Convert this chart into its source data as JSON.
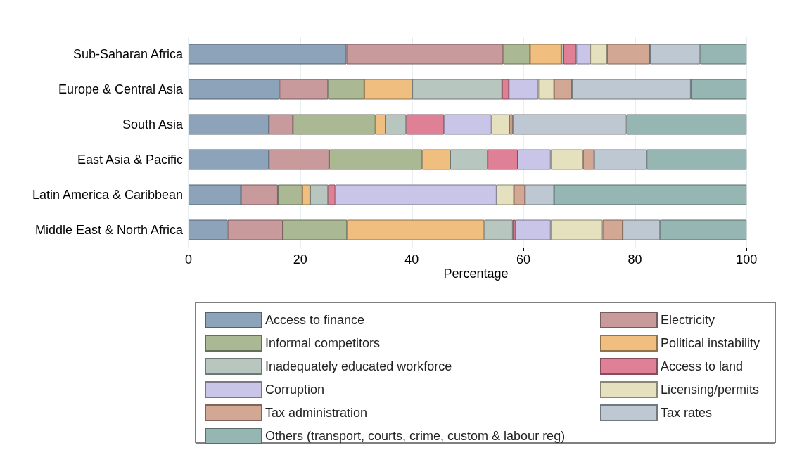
{
  "chart_data": {
    "type": "bar",
    "orientation": "horizontal",
    "stacked": true,
    "xlabel": "Percentage",
    "categories": [
      "Sub-Saharan Africa",
      "Europe & Central Asia",
      "South Asia",
      "East Asia & Pacific",
      "Latin America & Caribbean",
      "Middle East & North Africa"
    ],
    "series": [
      {
        "name": "Access to finance",
        "color": "#8ca3b9",
        "values": [
          28.3,
          16.3,
          14.4,
          14.4,
          9.4,
          7.0
        ]
      },
      {
        "name": "Electricity",
        "color": "#c89a9c",
        "values": [
          28.1,
          8.7,
          4.3,
          10.8,
          6.6,
          9.9
        ]
      },
      {
        "name": "Informal competitors",
        "color": "#aab894",
        "values": [
          4.8,
          6.5,
          14.8,
          16.7,
          4.4,
          11.5
        ]
      },
      {
        "name": "Political instability",
        "color": "#f0bf80",
        "values": [
          5.6,
          8.6,
          1.8,
          5.0,
          1.4,
          24.6
        ]
      },
      {
        "name": "Inadequately educated workforce",
        "color": "#b7c7c0",
        "values": [
          0.4,
          16.1,
          3.7,
          6.7,
          3.2,
          5.1
        ]
      },
      {
        "name": "Access to land",
        "color": "#e08096",
        "values": [
          2.3,
          1.2,
          6.8,
          5.4,
          1.3,
          0.5
        ]
      },
      {
        "name": "Corruption",
        "color": "#c9c5e8",
        "values": [
          2.5,
          5.3,
          8.5,
          5.9,
          28.9,
          6.3
        ]
      },
      {
        "name": "Licensing/permits",
        "color": "#e5e0bd",
        "values": [
          3.0,
          2.8,
          3.2,
          5.8,
          3.1,
          9.3
        ]
      },
      {
        "name": "Tax administration",
        "color": "#d2a794",
        "values": [
          7.7,
          3.2,
          0.6,
          2.0,
          2.0,
          3.6
        ]
      },
      {
        "name": "Tax rates",
        "color": "#bdc8d3",
        "values": [
          9.0,
          21.3,
          20.4,
          9.4,
          5.2,
          6.7
        ]
      },
      {
        "name": "Others (transport, courts, crime, custom & labour reg)",
        "color": "#96b6b3",
        "values": [
          8.3,
          10.0,
          21.5,
          17.9,
          34.5,
          15.5
        ]
      }
    ],
    "xlim": [
      0,
      103
    ],
    "xticks": [
      0,
      20,
      40,
      60,
      80,
      100
    ],
    "grid": "x",
    "legend": "bottom"
  }
}
